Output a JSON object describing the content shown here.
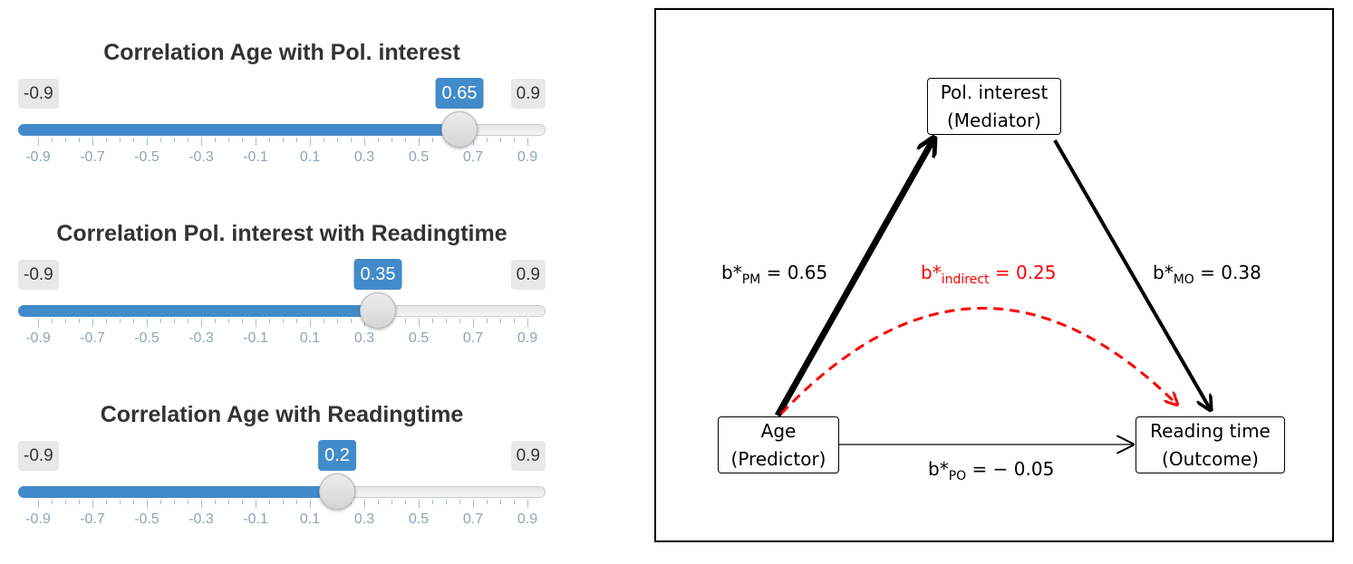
{
  "sliders": [
    {
      "title": "Correlation Age with Pol. interest",
      "min_label": "-0.9",
      "max_label": "0.9",
      "min": -0.9,
      "max": 0.9,
      "value": 0.65,
      "value_label": "0.65"
    },
    {
      "title": "Correlation Pol. interest with Readingtime",
      "min_label": "-0.9",
      "max_label": "0.9",
      "min": -0.9,
      "max": 0.9,
      "value": 0.35,
      "value_label": "0.35"
    },
    {
      "title": "Correlation Age with Readingtime",
      "min_label": "-0.9",
      "max_label": "0.9",
      "min": -0.9,
      "max": 0.9,
      "value": 0.2,
      "value_label": "0.2"
    }
  ],
  "tick_labels": [
    "-0.9",
    "-0.7",
    "-0.5",
    "-0.3",
    "-0.1",
    "0.1",
    "0.3",
    "0.5",
    "0.7",
    "0.9"
  ],
  "colors": {
    "accent": "#428bca",
    "indirect": "#ff0000"
  },
  "diagram": {
    "mediator": {
      "line1": "Pol. interest",
      "line2": "(Mediator)"
    },
    "predictor": {
      "line1": "Age",
      "line2": "(Predictor)"
    },
    "outcome": {
      "line1": "Reading time",
      "line2": "(Outcome)"
    },
    "pm": {
      "base": "b*",
      "sub": "PM",
      "rest": " = 0.65"
    },
    "mo": {
      "base": "b*",
      "sub": "MO",
      "rest": " = 0.38"
    },
    "po": {
      "base": "b*",
      "sub": "PO",
      "rest": " = − 0.05"
    },
    "indirect": {
      "base": "b*",
      "sub": "indirect",
      "rest": " = 0.25"
    }
  }
}
